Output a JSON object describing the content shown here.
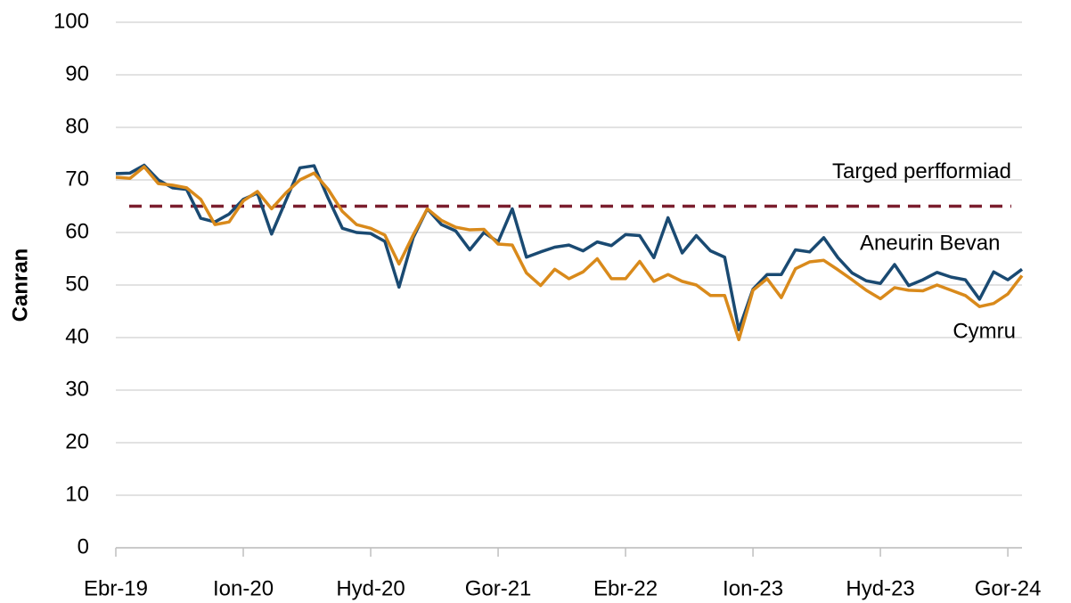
{
  "chart_data": {
    "type": "line",
    "y_label": "Canran",
    "categories": [
      "Ebr-19",
      null,
      null,
      null,
      null,
      null,
      null,
      null,
      null,
      "Ion-20",
      null,
      null,
      null,
      null,
      null,
      null,
      null,
      null,
      "Hyd-20",
      null,
      null,
      null,
      null,
      null,
      null,
      null,
      null,
      "Gor-21",
      null,
      null,
      null,
      null,
      null,
      null,
      null,
      null,
      "Ebr-22",
      null,
      null,
      null,
      null,
      null,
      null,
      null,
      null,
      "Ion-23",
      null,
      null,
      null,
      null,
      null,
      null,
      null,
      null,
      "Hyd-23",
      null,
      null,
      null,
      null,
      null,
      null,
      null,
      null,
      "Gor-24",
      null
    ],
    "series": [
      {
        "name": "Aneurin Bevan",
        "color": "#1a4a72",
        "values": [
          71.2,
          71.3,
          72.8,
          70,
          68.5,
          68.2,
          62.7,
          62,
          63.5,
          66.3,
          67.5,
          59.7,
          66,
          72.3,
          72.7,
          66.5,
          60.8,
          60,
          59.8,
          58.3,
          49.6,
          59,
          64.5,
          61.5,
          60.3,
          56.7,
          60,
          58.2,
          64.5,
          55.3,
          56.3,
          57.2,
          57.6,
          56.5,
          58.2,
          57.5,
          59.6,
          59.4,
          55.2,
          62.8,
          56.1,
          59.4,
          56.5,
          55.3,
          41.5,
          49.2,
          52,
          52,
          56.7,
          56.3,
          59,
          55.2,
          52.3,
          50.8,
          50.3,
          53.9,
          49.9,
          51,
          52.4,
          51.5,
          51,
          47.3,
          52.5,
          51,
          53
        ]
      },
      {
        "name": "Cymru",
        "color": "#d98a1b",
        "values": [
          70.5,
          70.3,
          72.5,
          69.3,
          69,
          68.5,
          66.3,
          61.5,
          62,
          66,
          67.8,
          64.5,
          67.5,
          70,
          71.3,
          68.2,
          64,
          61.5,
          60.8,
          59.5,
          54,
          59.5,
          64.5,
          62.3,
          61,
          60.5,
          60.6,
          57.8,
          57.6,
          52.3,
          49.9,
          53,
          51.2,
          52.5,
          55,
          51.2,
          51.2,
          54.5,
          50.7,
          52,
          50.7,
          50,
          48,
          48,
          39.6,
          49,
          51.2,
          47.6,
          53.1,
          54.4,
          54.7,
          52.9,
          51,
          49,
          47.4,
          49.5,
          49,
          48.9,
          50,
          49,
          48,
          45.9,
          46.5,
          48.3,
          51.8
        ]
      }
    ],
    "reference_line": {
      "value": 65,
      "label": "Targed perfformiad",
      "color": "#7b1e2e"
    },
    "ylim": [
      0,
      100
    ],
    "yticks": [
      0,
      10,
      20,
      30,
      40,
      50,
      60,
      70,
      80,
      90,
      100
    ],
    "grid": true
  }
}
